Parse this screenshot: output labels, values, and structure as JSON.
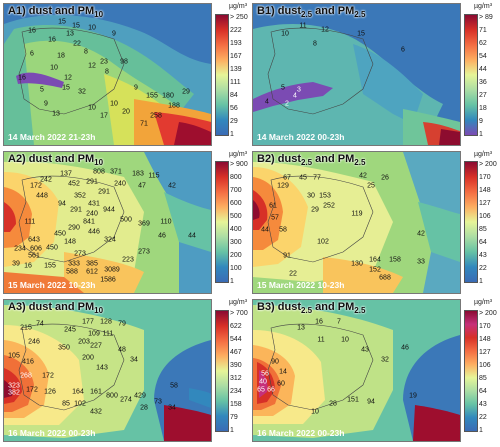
{
  "unit": "µg/m³",
  "panels": [
    {
      "id": "A1",
      "title_pre": "A1) dust and PM",
      "title_sub": "10",
      "title_post": "",
      "time": "14 March 2022 21-23h",
      "ticks": [
        "> 250",
        "222",
        "193",
        "167",
        "139",
        "111",
        "84",
        "56",
        "29",
        "1"
      ]
    },
    {
      "id": "B1",
      "title_pre": "B1) dust",
      "title_sub": "2.5",
      "title_post": " and PM",
      "title_sub2": "2.5",
      "time": "14 March 2022 00-23h",
      "ticks": [
        "> 89",
        "71",
        "62",
        "54",
        "44",
        "36",
        "27",
        "18",
        "9",
        "1"
      ]
    },
    {
      "id": "A2",
      "title_pre": "A2) dust and PM",
      "title_sub": "10",
      "title_post": "",
      "time": "15 March 2022 10-23h",
      "ticks": [
        "> 900",
        "800",
        "700",
        "600",
        "500",
        "400",
        "300",
        "200",
        "100",
        "1"
      ]
    },
    {
      "id": "B2",
      "title_pre": "B2) dust",
      "title_sub": "2.5",
      "title_post": " and PM",
      "title_sub2": "2.5",
      "time": "15 March 2022 10-23h",
      "ticks": [
        "> 200",
        "170",
        "148",
        "127",
        "106",
        "85",
        "64",
        "43",
        "22",
        "1"
      ]
    },
    {
      "id": "A3",
      "title_pre": "A3) dust and PM",
      "title_sub": "10",
      "title_post": "",
      "time": "16 March 2022 00-23h",
      "ticks": [
        "> 700",
        "622",
        "544",
        "467",
        "390",
        "312",
        "234",
        "158",
        "79",
        "1"
      ]
    },
    {
      "id": "B3",
      "title_pre": "B3) dust",
      "title_sub": "2.5",
      "title_post": " and PM",
      "title_sub2": "2.5",
      "time": "16 March 2022 00-23h",
      "ticks": [
        "> 200",
        "170",
        "148",
        "127",
        "106",
        "85",
        "64",
        "43",
        "22",
        "1"
      ]
    }
  ],
  "stations": {
    "A1": [
      "15",
      "15",
      "16",
      "10",
      "13",
      "16",
      "9",
      "22",
      "8",
      "6",
      "18",
      "98",
      "23",
      "12",
      "8",
      "16",
      "10",
      "12",
      "5",
      "15",
      "32",
      "29",
      "155",
      "180",
      "188",
      "9",
      "258",
      "71",
      "13",
      "10",
      "10",
      "17",
      "20",
      "9"
    ],
    "B1": [
      "11",
      "10",
      "12",
      "15",
      "8",
      "6",
      "5",
      "4",
      "3",
      "2",
      "4"
    ],
    "A2": [
      "137",
      "242",
      "172",
      "808",
      "371",
      "183",
      "115",
      "452",
      "291",
      "240",
      "291",
      "47",
      "42",
      "448",
      "352",
      "431",
      "94",
      "291",
      "240",
      "944",
      "500",
      "111",
      "841",
      "369",
      "110",
      "290",
      "450",
      "446",
      "46",
      "148",
      "324",
      "643",
      "450",
      "234",
      "606",
      "273",
      "561",
      "333",
      "385",
      "223",
      "39",
      "16",
      "155",
      "588",
      "612",
      "3089",
      "1586",
      "273",
      "44"
    ],
    "B2": [
      "67",
      "129",
      "45",
      "77",
      "42",
      "26",
      "25",
      "61",
      "57",
      "153",
      "30",
      "29",
      "252",
      "119",
      "44",
      "58",
      "102",
      "164",
      "130",
      "152",
      "158",
      "33",
      "688",
      "91",
      "42",
      "22"
    ],
    "A3": [
      "215",
      "74",
      "177",
      "128",
      "79",
      "245",
      "109",
      "111",
      "203",
      "246",
      "350",
      "227",
      "200",
      "416",
      "143",
      "268",
      "172",
      "323",
      "382",
      "172",
      "126",
      "164",
      "161",
      "800",
      "274",
      "429",
      "58",
      "48",
      "34",
      "105",
      "85",
      "102",
      "28",
      "73",
      "34",
      "432"
    ],
    "B3": [
      "13",
      "16",
      "7",
      "11",
      "10",
      "46",
      "90",
      "56",
      "40",
      "14",
      "43",
      "32",
      "65",
      "66",
      "60",
      "151",
      "28",
      "94",
      "19",
      "10"
    ]
  }
}
